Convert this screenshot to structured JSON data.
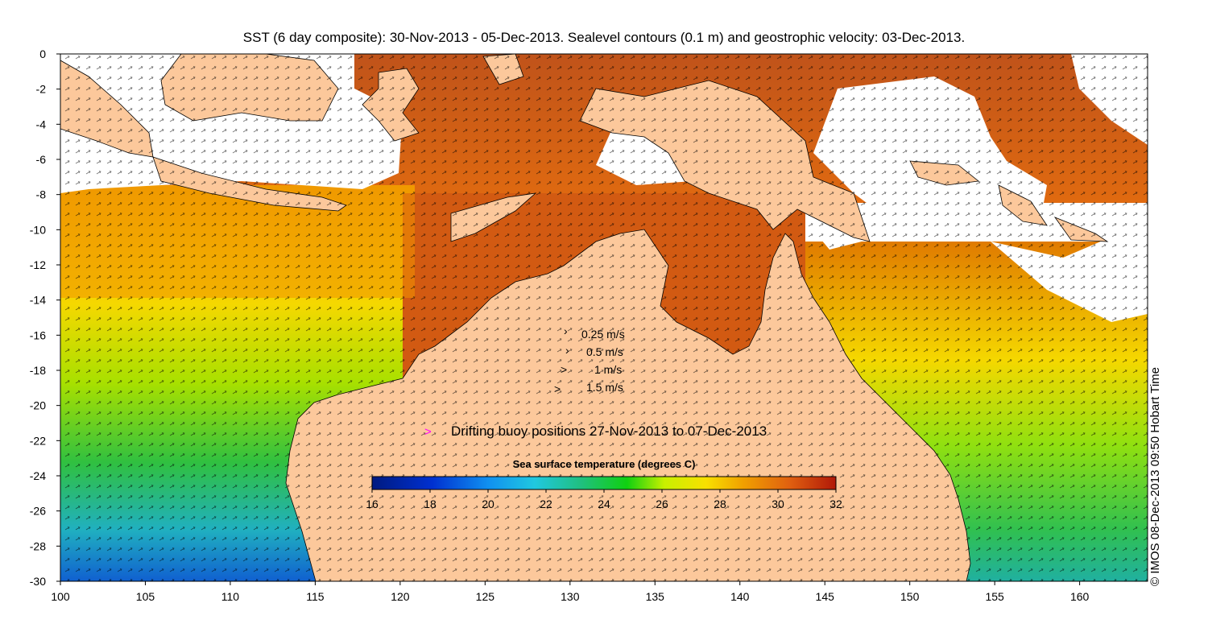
{
  "title": "SST (6 day composite): 30-Nov-2013 - 05-Dec-2013. Sealevel contours (0.1 m) and geostrophic velocity: 03-Dec-2013.",
  "credit": "© IMOS 08-Dec-2013 09:50 Hobart Time",
  "axes": {
    "x_ticks": [
      "100",
      "105",
      "110",
      "115",
      "120",
      "125",
      "130",
      "135",
      "140",
      "145",
      "150",
      "155",
      "160"
    ],
    "y_ticks": [
      "0",
      "-2",
      "-4",
      "-6",
      "-8",
      "-10",
      "-12",
      "-14",
      "-16",
      "-18",
      "-20",
      "-22",
      "-24",
      "-26",
      "-28",
      "-30"
    ],
    "lon_range": [
      100,
      164
    ],
    "lat_range": [
      -30,
      0
    ]
  },
  "velocity_legend": [
    {
      "label": "0.25 m/s",
      "speed": 0.25
    },
    {
      "label": "0.5 m/s",
      "speed": 0.5
    },
    {
      "label": "1 m/s",
      "speed": 1
    },
    {
      "label": "1.5 m/s",
      "speed": 1.5
    }
  ],
  "buoy_legend": {
    "symbol": ">",
    "label": "Drifting buoy positions 27-Nov-2013 to 07-Dec-2013",
    "color": "#ff00ff"
  },
  "colorbar": {
    "title": "Sea surface temperature (degrees C)",
    "ticks": [
      "16",
      "18",
      "20",
      "22",
      "24",
      "26",
      "28",
      "30",
      "32"
    ],
    "range": [
      16,
      32
    ]
  },
  "colors": {
    "land": "#fcc89b",
    "no_data": "#ffffff",
    "cloud_band": "#b84a1a"
  }
}
